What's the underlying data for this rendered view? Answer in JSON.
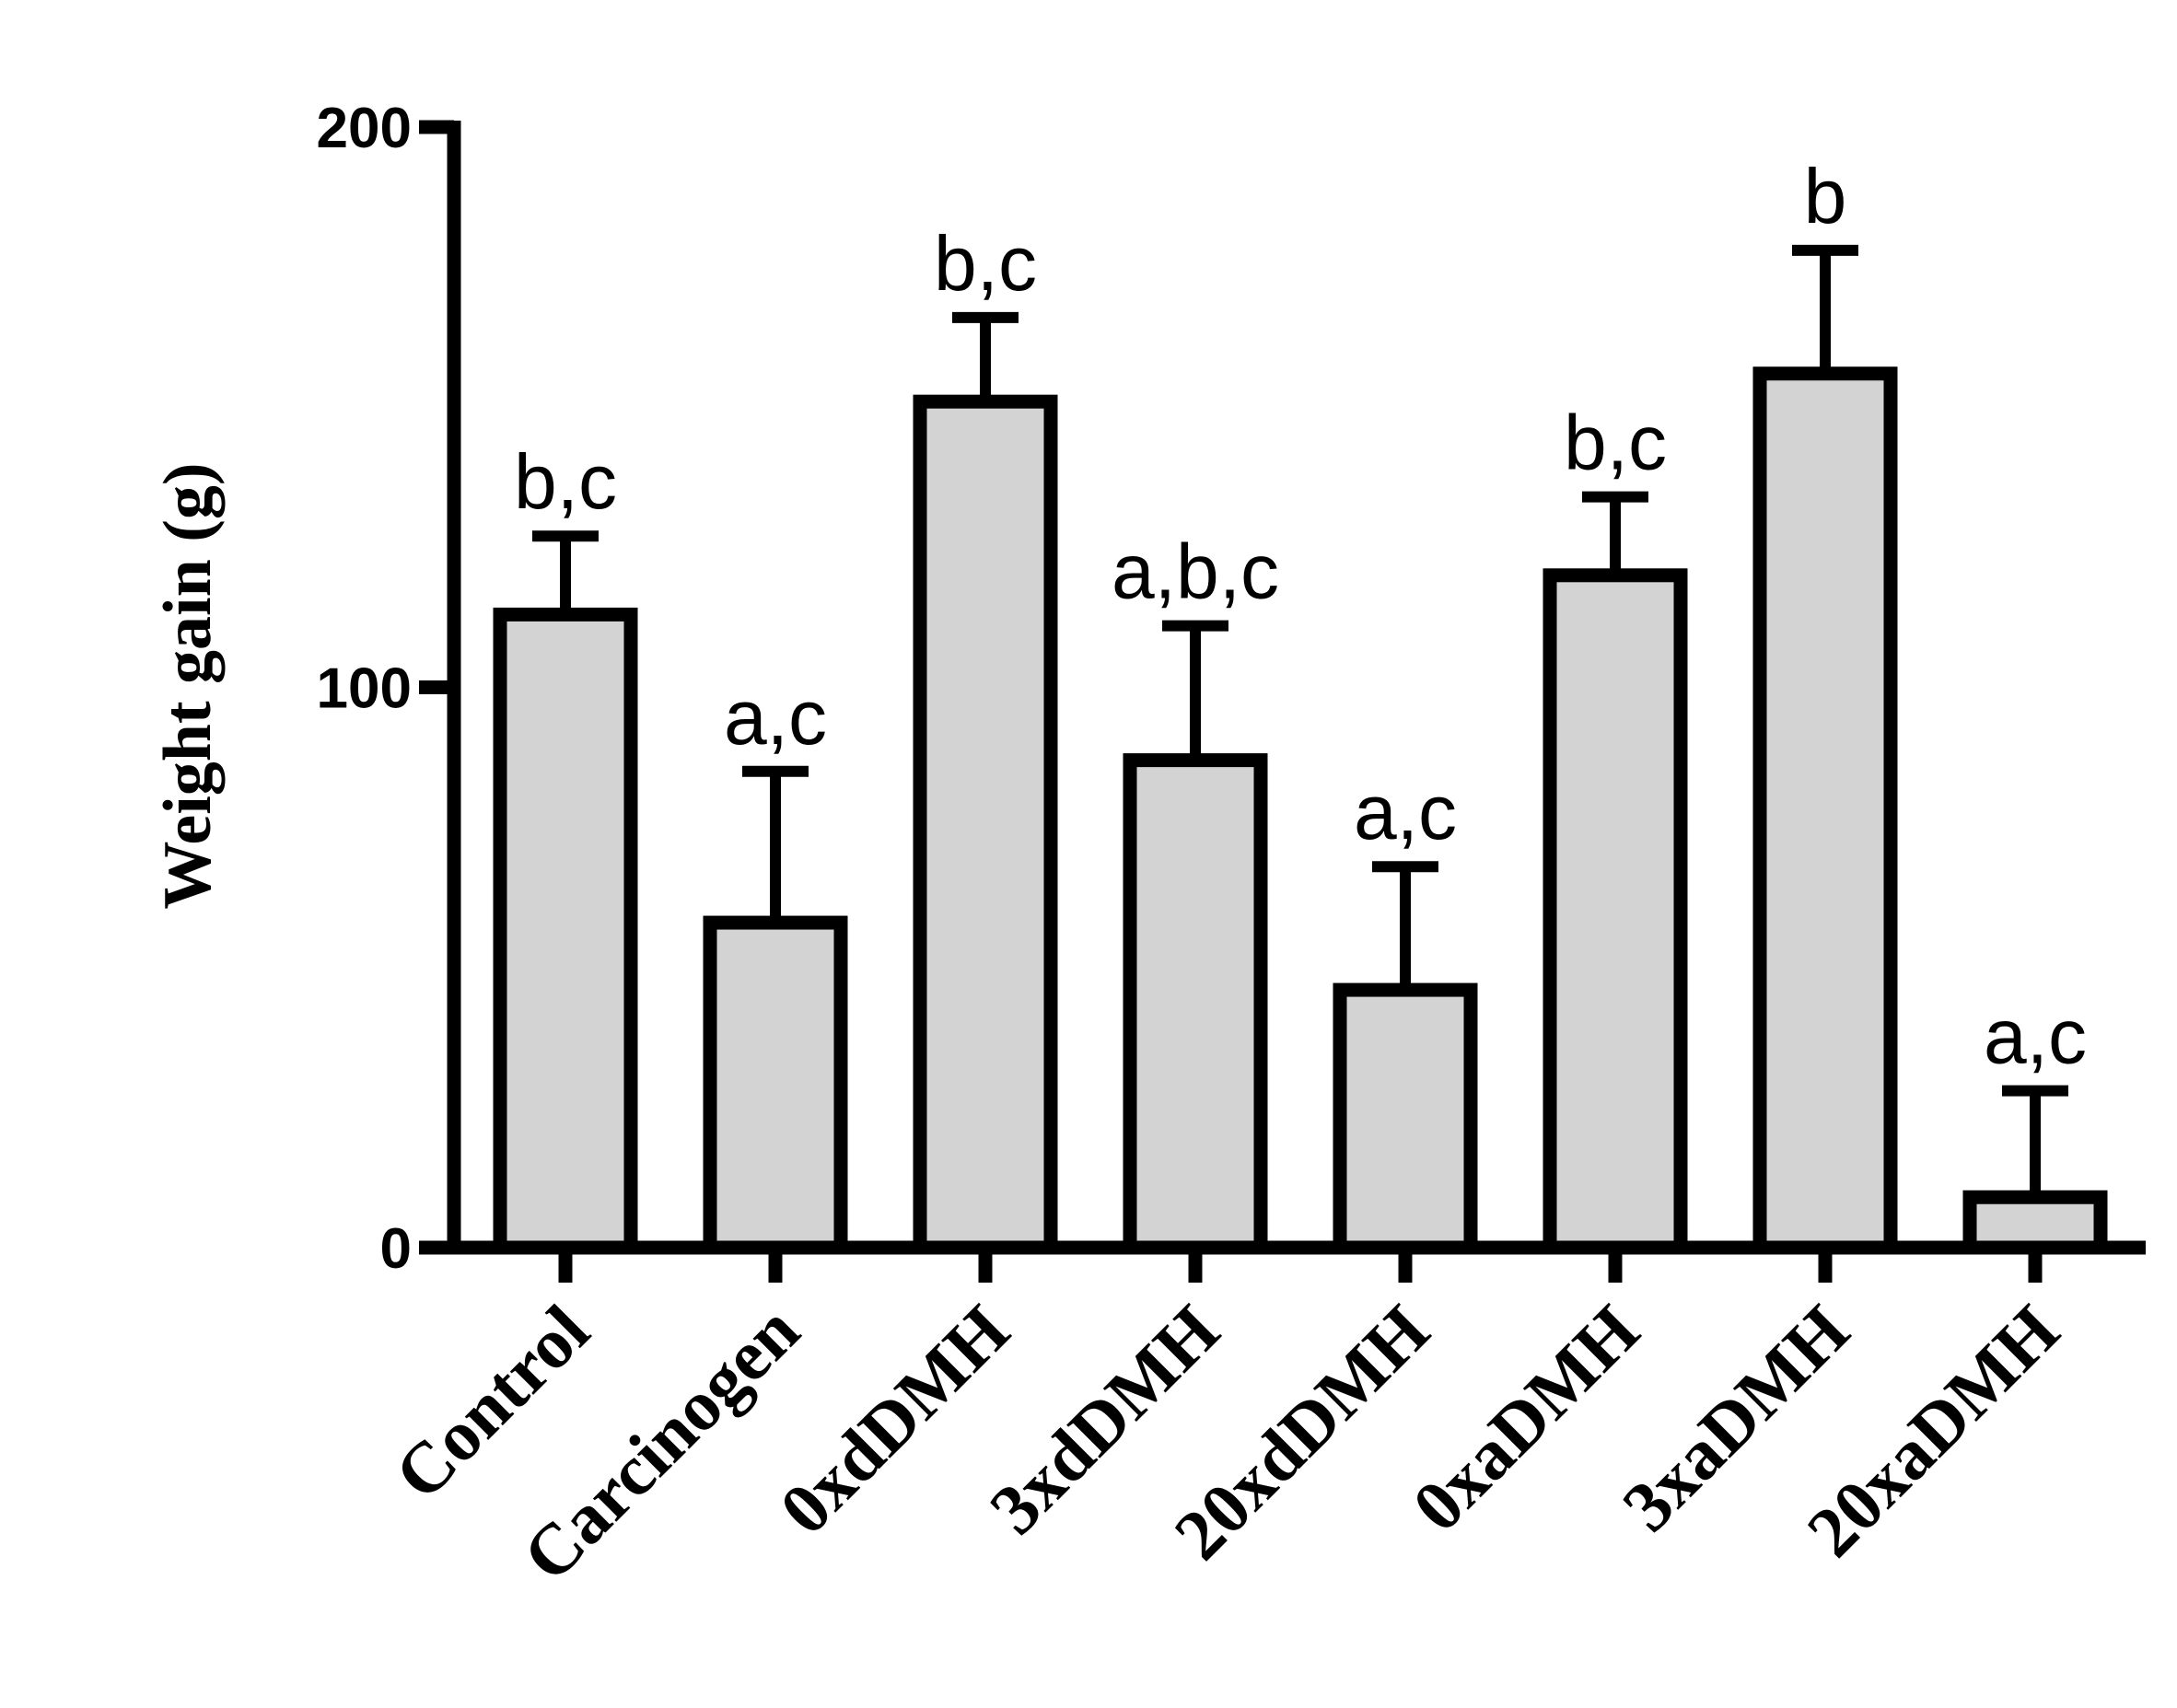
{
  "chart_data": {
    "type": "bar",
    "title": "",
    "xlabel": "",
    "ylabel": "Weight gain (g)",
    "ylim": [
      0,
      200
    ],
    "yticks": [
      0,
      100,
      200
    ],
    "grid": false,
    "legend": "none",
    "bar_color": "#d3d3d3",
    "edge_color": "#000000",
    "categories": [
      "Control",
      "Carcinogen",
      "0xdDMH",
      "3xdDMH",
      "20xdDMH",
      "0xaDMH",
      "3xaDMH",
      "20xaDMH"
    ],
    "values": [
      113,
      58,
      151,
      87,
      46,
      120,
      156,
      9
    ],
    "errors": [
      14,
      27,
      15,
      24,
      22,
      14,
      22,
      19
    ],
    "significance": [
      "b,c",
      "a,c",
      "b,c",
      "a,b,c",
      "a,c",
      "b,c",
      "b",
      "a,c"
    ]
  }
}
